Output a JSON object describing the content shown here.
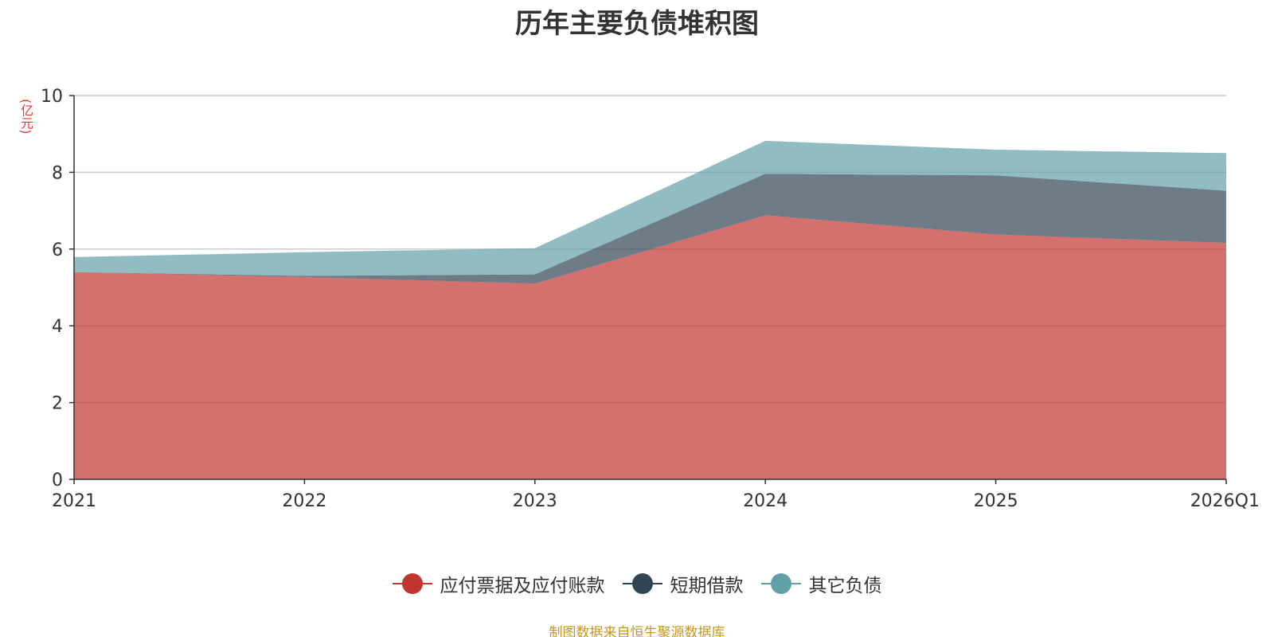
{
  "chart_data": {
    "type": "area",
    "stacked": true,
    "title": "历年主要负债堆积图",
    "ylabel": "(亿元)",
    "categories": [
      "2021",
      "2022",
      "2023",
      "2024",
      "2025",
      "2026Q1"
    ],
    "ylim": [
      0,
      10
    ],
    "yticks": [
      0,
      2,
      4,
      6,
      8,
      10
    ],
    "grid": true,
    "legend_position": "bottom",
    "series": [
      {
        "name": "应付票据及应付账款",
        "color": "#c23531",
        "values": [
          5.4,
          5.27,
          5.1,
          6.88,
          6.38,
          6.16
        ]
      },
      {
        "name": "短期借款",
        "color": "#2f4554",
        "values": [
          0.0,
          0.03,
          0.24,
          1.08,
          1.54,
          1.36
        ]
      },
      {
        "name": "其它负债",
        "color": "#61a0a8",
        "values": [
          0.39,
          0.62,
          0.68,
          0.86,
          0.67,
          0.98
        ]
      }
    ]
  },
  "source_text": "制图数据来自恒生聚源数据库"
}
